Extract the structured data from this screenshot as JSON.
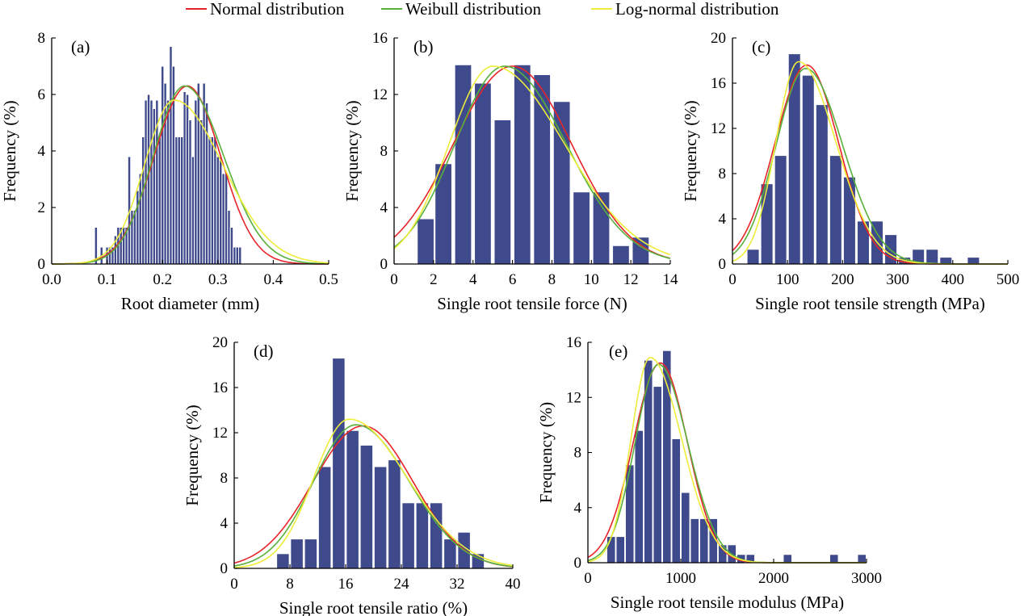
{
  "colors": {
    "bar": "#3F4A8C",
    "normal": "#E8242B",
    "weibull": "#58B03C",
    "lognormal": "#EDED3A"
  },
  "legend": [
    {
      "label": "Normal distribution",
      "color": "#E8242B"
    },
    {
      "label": "Weibull distribution",
      "color": "#58B03C"
    },
    {
      "label": "Log-normal distribution",
      "color": "#EDED3A"
    }
  ],
  "chart_data": [
    {
      "type": "bar",
      "panel": "(a)",
      "xlabel": "Root diameter (mm)",
      "ylabel": "Frequency (%)",
      "xlim": [
        0,
        0.5
      ],
      "ylim": [
        0,
        8
      ],
      "xticks": [
        "0.0",
        "0.1",
        "0.2",
        "0.3",
        "0.4",
        "0.5"
      ],
      "yticks": [
        "0",
        "2",
        "4",
        "6",
        "8"
      ],
      "bin_width": 0.005,
      "x": [
        0.08,
        0.09,
        0.1,
        0.105,
        0.11,
        0.115,
        0.12,
        0.125,
        0.13,
        0.135,
        0.14,
        0.145,
        0.15,
        0.155,
        0.16,
        0.165,
        0.17,
        0.175,
        0.18,
        0.185,
        0.19,
        0.195,
        0.2,
        0.205,
        0.21,
        0.215,
        0.22,
        0.225,
        0.23,
        0.235,
        0.24,
        0.245,
        0.25,
        0.255,
        0.26,
        0.265,
        0.27,
        0.275,
        0.28,
        0.285,
        0.29,
        0.295,
        0.3,
        0.305,
        0.31,
        0.315,
        0.32,
        0.325,
        0.33,
        0.335,
        0.34
      ],
      "values": [
        1.3,
        0.6,
        0.6,
        0.6,
        0.6,
        1.0,
        1.3,
        1.3,
        1.3,
        1.3,
        3.8,
        1.9,
        1.9,
        2.6,
        3.2,
        4.5,
        5.8,
        6.0,
        5.8,
        5.5,
        5.8,
        4.5,
        7.0,
        6.4,
        5.8,
        7.7,
        7.0,
        4.5,
        4.5,
        4.5,
        6.1,
        6.0,
        5.1,
        3.8,
        5.8,
        6.4,
        5.1,
        6.4,
        5.7,
        4.5,
        4.5,
        4.5,
        3.8,
        3.8,
        3.2,
        3.2,
        1.9,
        1.3,
        0.6,
        0.6,
        0.6
      ],
      "curves": {
        "normal": {
          "mu": 0.245,
          "sigma": 0.06,
          "peak": 6.3
        },
        "weibull": {
          "mu": 0.24,
          "sigma": 0.063,
          "peak": 6.3
        },
        "lognormal": {
          "mu": 0.221,
          "sigma": 0.065,
          "peak": 5.8
        }
      }
    },
    {
      "type": "bar",
      "panel": "(b)",
      "xlabel": "Single root tensile force (N)",
      "ylabel": "Frequency (%)",
      "xlim": [
        0,
        14
      ],
      "ylim": [
        0,
        16
      ],
      "xticks": [
        "0",
        "2",
        "4",
        "6",
        "8",
        "10",
        "12",
        "14"
      ],
      "yticks": [
        "0",
        "4",
        "8",
        "12",
        "16"
      ],
      "bin_width": 0.85,
      "x": [
        1.6,
        2.5,
        3.5,
        4.5,
        5.5,
        6.5,
        7.5,
        8.5,
        9.5,
        10.5,
        11.5,
        12.5
      ],
      "values": [
        3.2,
        7.1,
        14.1,
        12.8,
        10.2,
        14.1,
        13.4,
        11.5,
        5.1,
        5.1,
        1.3,
        1.9
      ],
      "curves": {
        "normal": {
          "mu": 6.0,
          "sigma": 3.0,
          "peak": 14.0
        },
        "weibull": {
          "mu": 5.6,
          "sigma": 2.8,
          "peak": 14.0
        },
        "lognormal": {
          "mu": 5.0,
          "sigma": 2.7,
          "peak": 14.0
        }
      }
    },
    {
      "type": "bar",
      "panel": "(c)",
      "xlabel": "Single root tensile strength (MPa)",
      "ylabel": "Frequency (%)",
      "xlim": [
        0,
        500
      ],
      "ylim": [
        0,
        20
      ],
      "xticks": [
        "0",
        "100",
        "200",
        "300",
        "400",
        "500"
      ],
      "yticks": [
        "0",
        "4",
        "8",
        "12",
        "16",
        "20"
      ],
      "bin_width": 22,
      "x": [
        37.5,
        62.5,
        87.5,
        112.5,
        137.5,
        162.5,
        187.5,
        212.5,
        237.5,
        262.5,
        287.5,
        312.5,
        337.5,
        362.5,
        387.5,
        437.5
      ],
      "values": [
        1.3,
        7.1,
        9.6,
        18.6,
        16.7,
        14.1,
        9.6,
        7.7,
        3.8,
        3.8,
        2.6,
        0.6,
        1.3,
        1.3,
        0.6,
        0.6
      ],
      "curves": {
        "normal": {
          "mu": 135,
          "sigma": 58,
          "peak": 17.6
        },
        "weibull": {
          "mu": 133,
          "sigma": 60,
          "peak": 17.3
        },
        "lognormal": {
          "mu": 120,
          "sigma": 50,
          "peak": 17.9
        }
      }
    },
    {
      "type": "bar",
      "panel": "(d)",
      "xlabel": "Single root tensile ratio (%)",
      "ylabel": "Frequency (%)",
      "xlim": [
        0,
        40
      ],
      "ylim": [
        0,
        20
      ],
      "xticks": [
        "0",
        "8",
        "16",
        "24",
        "32",
        "40"
      ],
      "yticks": [
        "0",
        "4",
        "8",
        "12",
        "16",
        "20"
      ],
      "bin_width": 1.8,
      "x": [
        7,
        9,
        11,
        13,
        15,
        17,
        19,
        21,
        23,
        25,
        27,
        29,
        31,
        33,
        35
      ],
      "values": [
        1.3,
        2.6,
        2.6,
        9.0,
        18.6,
        12.2,
        10.9,
        9.0,
        9.6,
        5.8,
        5.8,
        5.8,
        2.6,
        3.2,
        1.3
      ],
      "curves": {
        "normal": {
          "mu": 18.5,
          "sigma": 7.2,
          "peak": 12.6
        },
        "weibull": {
          "mu": 17.5,
          "sigma": 6.8,
          "peak": 12.7
        },
        "lognormal": {
          "mu": 16.5,
          "sigma": 6.2,
          "peak": 13.2
        }
      }
    },
    {
      "type": "bar",
      "panel": "(e)",
      "xlabel": "Single root tensile modulus (MPa)",
      "ylabel": "Frequency (%)",
      "xlim": [
        0,
        3000
      ],
      "ylim": [
        0,
        16
      ],
      "xticks": [
        "0",
        "1000",
        "2000",
        "3000"
      ],
      "yticks": [
        "0",
        "4",
        "8",
        "12",
        "16"
      ],
      "bin_width": 92,
      "x": [
        250,
        350,
        450,
        550,
        650,
        750,
        850,
        950,
        1050,
        1150,
        1250,
        1350,
        1450,
        1550,
        1650,
        1750,
        2150,
        2650,
        2950
      ],
      "values": [
        1.9,
        1.9,
        7.1,
        9.6,
        14.7,
        12.8,
        15.4,
        9.0,
        5.1,
        3.2,
        3.2,
        3.2,
        1.3,
        1.3,
        0.6,
        0.6,
        0.6,
        0.6,
        0.6
      ],
      "curves": {
        "normal": {
          "mu": 780,
          "sigma": 290,
          "peak": 14.5
        },
        "weibull": {
          "mu": 760,
          "sigma": 280,
          "peak": 14.4
        },
        "lognormal": {
          "mu": 670,
          "sigma": 250,
          "peak": 14.9
        }
      }
    }
  ]
}
